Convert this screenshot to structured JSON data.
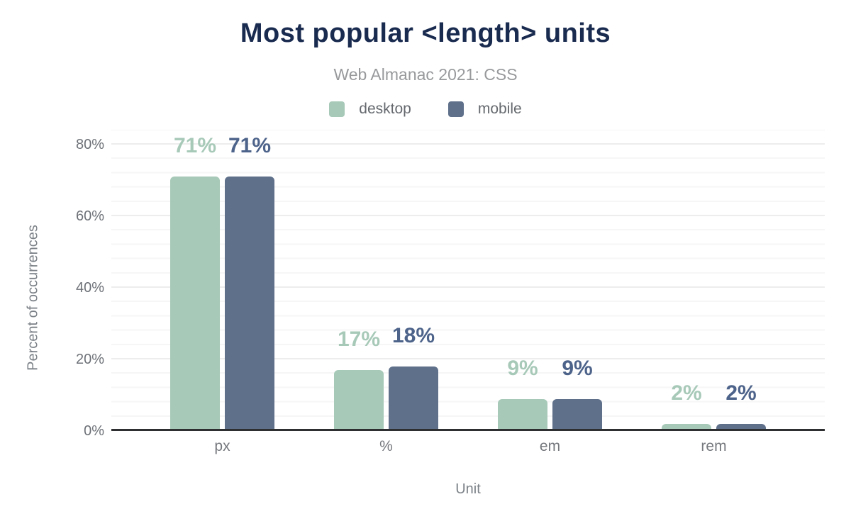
{
  "header": {
    "title": "Most popular <length> units",
    "subtitle": "Web Almanac 2021: CSS"
  },
  "legend": [
    {
      "name": "desktop",
      "label": "desktop",
      "color": "#a7c9b8"
    },
    {
      "name": "mobile",
      "label": "mobile",
      "color": "#5f708b"
    }
  ],
  "colors": {
    "title_text": "#1a2b50",
    "subtitle_text": "#97999b",
    "axis_text": "#6d7177",
    "axis_line": "#2d2f31",
    "desktop_bar": "#a7c9b8",
    "mobile_bar": "#5f708b",
    "desktop_value_label": "#a7c9b8",
    "mobile_value_label": "#4d638a"
  },
  "chart_data": {
    "type": "bar",
    "title": "Most popular <length> units",
    "subtitle": "Web Almanac 2021: CSS",
    "categories": [
      "px",
      "%",
      "em",
      "rem"
    ],
    "series": [
      {
        "name": "desktop",
        "values": [
          71,
          17,
          9,
          2
        ],
        "color": "#a7c9b8",
        "label_color": "#a7c9b8"
      },
      {
        "name": "mobile",
        "values": [
          71,
          18,
          9,
          2
        ],
        "color": "#5f708b",
        "label_color": "#4d638a"
      }
    ],
    "value_suffix": "%",
    "data_labels": {
      "desktop": [
        "71%",
        "17%",
        "9%",
        "2%"
      ],
      "mobile": [
        "71%",
        "18%",
        "9%",
        "2%"
      ]
    },
    "xlabel": "Unit",
    "ylabel": "Percent of occurrences",
    "y_ticks": [
      "0%",
      "20%",
      "40%",
      "60%",
      "80%"
    ],
    "ylim": [
      0,
      80
    ],
    "grid": "horizontal-minor-and-major",
    "legend_position": "top"
  }
}
